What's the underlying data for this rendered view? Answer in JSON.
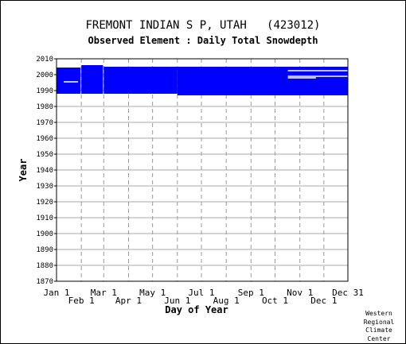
{
  "chart_data": {
    "type": "heatmap",
    "title": "FREMONT INDIAN S P, UTAH   (423012)",
    "subtitle": "Observed Element : Daily Total Snowdepth",
    "xlabel": "Day of Year",
    "ylabel": "Year",
    "y_ticks": [
      1870,
      1880,
      1890,
      1900,
      1910,
      1920,
      1930,
      1940,
      1950,
      1960,
      1970,
      1980,
      1990,
      2000,
      2010
    ],
    "ylim": [
      1870,
      2010
    ],
    "xlim": [
      1,
      365
    ],
    "x_ticks_upper": [
      {
        "label": "Jan 1",
        "day": 1
      },
      {
        "label": "Mar 1",
        "day": 60
      },
      {
        "label": "May 1",
        "day": 121
      },
      {
        "label": "Jul 1",
        "day": 182
      },
      {
        "label": "Sep 1",
        "day": 244
      },
      {
        "label": "Nov 1",
        "day": 305
      },
      {
        "label": "Dec 31",
        "day": 365
      }
    ],
    "x_ticks_lower": [
      {
        "label": "Feb 1",
        "day": 32
      },
      {
        "label": "Apr 1",
        "day": 91
      },
      {
        "label": "Jun 1",
        "day": 152
      },
      {
        "label": "Aug 1",
        "day": 213
      },
      {
        "label": "Oct 1",
        "day": 274
      },
      {
        "label": "Dec 1",
        "day": 335
      }
    ],
    "data_color": "#0000ff",
    "grid": true,
    "series": [
      {
        "day_start": 1,
        "day_end": 31,
        "year_start": 1988,
        "year_end": 2004.5
      },
      {
        "day_start": 32,
        "day_end": 59,
        "year_start": 1988,
        "year_end": 2006
      },
      {
        "day_start": 60,
        "day_end": 152,
        "year_start": 1988,
        "year_end": 2005
      },
      {
        "day_start": 152,
        "day_end": 365,
        "year_start": 1987,
        "year_end": 2005
      }
    ],
    "gaps": [
      {
        "day_start": 10,
        "day_end": 28,
        "year": 1995.5
      },
      {
        "day_start": 290,
        "day_end": 325,
        "year": 1998
      },
      {
        "day_start": 290,
        "day_end": 365,
        "year": 2002.5
      },
      {
        "day_start": 290,
        "day_end": 365,
        "year": 1999
      }
    ]
  },
  "credit": [
    "Western",
    "Regional",
    "Climate",
    "Center"
  ]
}
